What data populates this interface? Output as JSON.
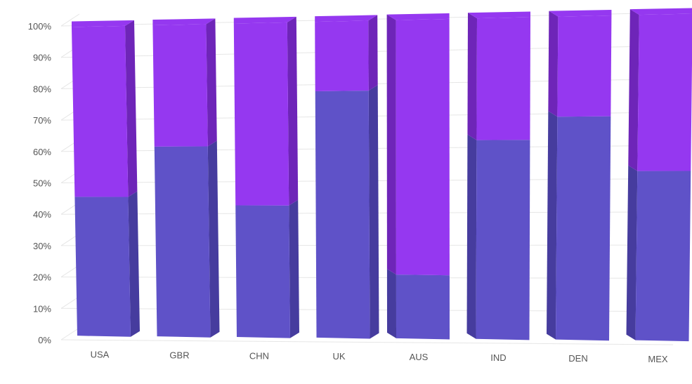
{
  "chart_data": {
    "type": "bar",
    "stacked": "percent",
    "three_d": true,
    "categories": [
      "USA",
      "GBR",
      "CHN",
      "UK",
      "AUS",
      "IND",
      "DEN",
      "MEX"
    ],
    "series": [
      {
        "values": [
          45,
          61,
          42,
          78,
          20,
          62,
          69,
          52
        ]
      },
      {
        "values": [
          55,
          39,
          58,
          22,
          80,
          38,
          31,
          48
        ]
      }
    ],
    "y_ticks": [
      "0%",
      "10%",
      "20%",
      "30%",
      "40%",
      "50%",
      "60%",
      "70%",
      "80%",
      "90%",
      "100%"
    ],
    "ylim": [
      0,
      100
    ],
    "grid": true,
    "colors": {
      "series_bottom": "#5f52c8",
      "series_bottom_side": "#463c9e",
      "series_top": "#9538f0",
      "series_top_side": "#6e25b8",
      "grid": "#e6e6e6",
      "label": "#555555"
    }
  }
}
